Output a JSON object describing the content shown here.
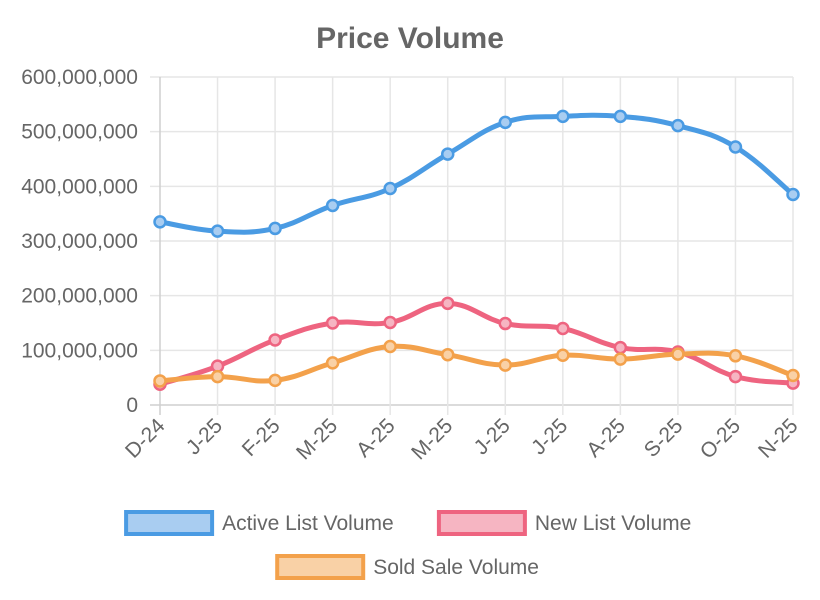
{
  "chart_data": {
    "type": "line",
    "title": "Price Volume",
    "xlabel": "",
    "ylabel": "",
    "categories": [
      "D-24",
      "J-25",
      "F-25",
      "M-25",
      "A-25",
      "M-25",
      "J-25",
      "J-25",
      "A-25",
      "S-25",
      "O-25",
      "N-25"
    ],
    "ylim": [
      0,
      600000000
    ],
    "yticks": [
      0,
      100000000,
      200000000,
      300000000,
      400000000,
      500000000,
      600000000
    ],
    "ytick_labels": [
      "0",
      "100,000,000",
      "200,000,000",
      "300,000,000",
      "400,000,000",
      "500,000,000",
      "600,000,000"
    ],
    "grid": true,
    "legend_position": "bottom",
    "series": [
      {
        "name": "Active List Volume",
        "color": "#4a9be3",
        "fill": "#a9cdf1",
        "values": [
          335000000,
          318000000,
          323000000,
          365000000,
          396000000,
          459000000,
          517000000,
          528000000,
          528000000,
          511000000,
          472000000,
          385000000
        ]
      },
      {
        "name": "New List Volume",
        "color": "#ee6480",
        "fill": "#f6b5c2",
        "values": [
          38000000,
          71000000,
          119000000,
          150000000,
          151000000,
          186000000,
          149000000,
          140000000,
          105000000,
          97000000,
          52000000,
          40000000
        ]
      },
      {
        "name": "Sold Sale Volume",
        "color": "#f3a14b",
        "fill": "#f9d1a6",
        "values": [
          44000000,
          52000000,
          45000000,
          77000000,
          107000000,
          92000000,
          73000000,
          91000000,
          84000000,
          93000000,
          90000000,
          54000000
        ]
      }
    ]
  }
}
